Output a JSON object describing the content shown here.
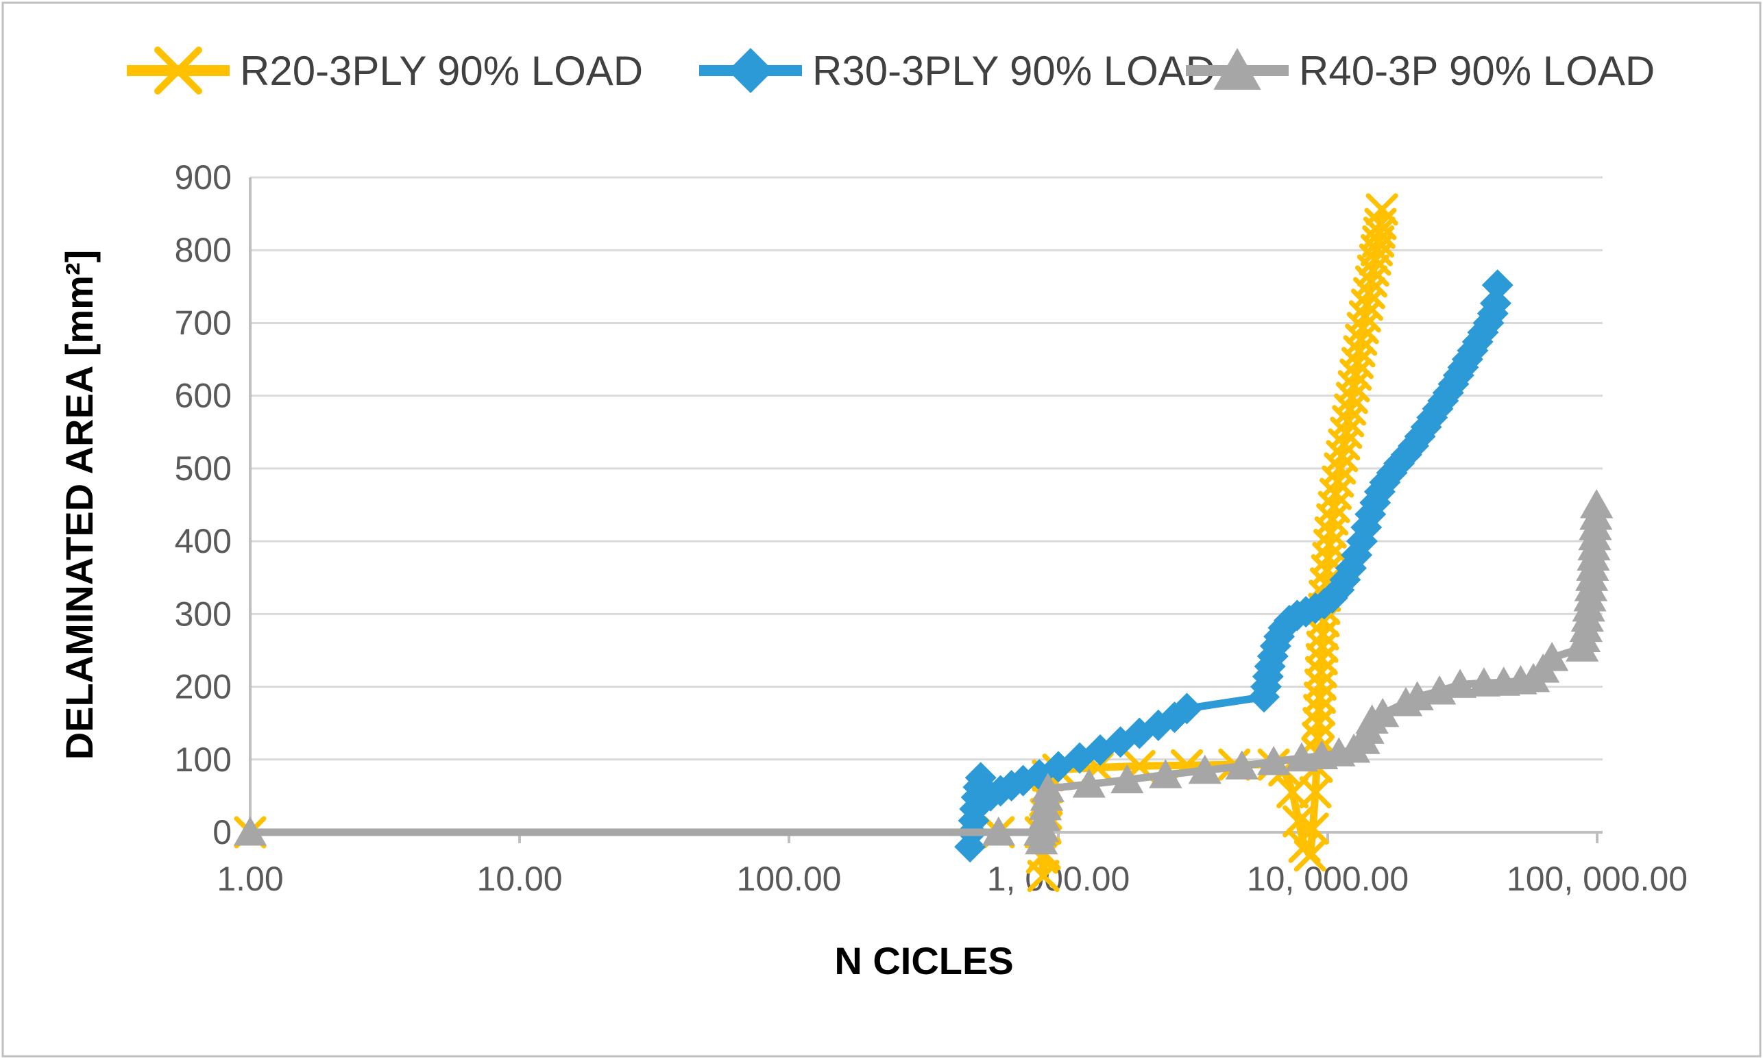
{
  "figure": {
    "background": "#FFFFFF",
    "border_color": "#BFBFBF"
  },
  "chart_data": {
    "type": "line",
    "title": "",
    "xlabel": "N CICLES",
    "ylabel": "DELAMINATED AREA [mm²]",
    "x_scale": "log10",
    "xlim": [
      1,
      100000
    ],
    "ylim": [
      0,
      900
    ],
    "y_ticks": [
      0,
      100,
      200,
      300,
      400,
      500,
      600,
      700,
      800,
      900
    ],
    "x_ticks": [
      1,
      10,
      100,
      1000,
      10000,
      100000
    ],
    "x_tick_labels": [
      "1.00",
      "10.00",
      "100.00",
      "1, 000.00",
      "10, 000.00",
      "100, 000.00"
    ],
    "grid": "horizontal",
    "legend_position": "top",
    "grid_color": "#D9D9D9",
    "axis_color": "#BFBFBF",
    "tick_label_color": "#595959",
    "axis_title_color": "#000000",
    "legend_text_color": "#404040",
    "series": [
      {
        "name": "R20-3PLY 90% LOAD",
        "color": "#FFC000",
        "marker": "x-cross",
        "points": [
          [
            1,
            0
          ],
          [
            600,
            0
          ],
          [
            860,
            0
          ],
          [
            870,
            -35
          ],
          [
            880,
            -60
          ],
          [
            890,
            -30
          ],
          [
            895,
            5
          ],
          [
            900,
            25
          ],
          [
            905,
            45
          ],
          [
            910,
            62
          ],
          [
            915,
            78
          ],
          [
            1000,
            86
          ],
          [
            1400,
            89
          ],
          [
            2000,
            91
          ],
          [
            3000,
            92
          ],
          [
            4500,
            93
          ],
          [
            6300,
            93
          ],
          [
            6900,
            85
          ],
          [
            7400,
            55
          ],
          [
            7800,
            15
          ],
          [
            8200,
            -20
          ],
          [
            8600,
            -32
          ],
          [
            8800,
            5
          ],
          [
            9000,
            55
          ],
          [
            9100,
            90
          ],
          [
            9150,
            110
          ],
          [
            9200,
            130
          ],
          [
            9250,
            150
          ],
          [
            9300,
            168
          ],
          [
            9350,
            185
          ],
          [
            9400,
            203
          ],
          [
            9450,
            220
          ],
          [
            9500,
            238
          ],
          [
            9550,
            255
          ],
          [
            9600,
            272
          ],
          [
            9650,
            290
          ],
          [
            9700,
            307
          ],
          [
            9750,
            325
          ],
          [
            9850,
            342
          ],
          [
            9950,
            360
          ],
          [
            10050,
            377
          ],
          [
            10150,
            395
          ],
          [
            10250,
            412
          ],
          [
            10400,
            430
          ],
          [
            10550,
            447
          ],
          [
            10700,
            465
          ],
          [
            10900,
            482
          ],
          [
            11100,
            500
          ],
          [
            11300,
            517
          ],
          [
            11500,
            533
          ],
          [
            11700,
            549
          ],
          [
            11900,
            565
          ],
          [
            12100,
            581
          ],
          [
            12300,
            597
          ],
          [
            12500,
            613
          ],
          [
            12700,
            629
          ],
          [
            12900,
            645
          ],
          [
            13100,
            661
          ],
          [
            13300,
            677
          ],
          [
            13500,
            693
          ],
          [
            13750,
            709
          ],
          [
            14000,
            725
          ],
          [
            14250,
            741
          ],
          [
            14500,
            757
          ],
          [
            14750,
            772
          ],
          [
            15000,
            787
          ],
          [
            15200,
            800
          ],
          [
            15400,
            812
          ],
          [
            15550,
            824
          ],
          [
            15700,
            836
          ],
          [
            15900,
            856
          ]
        ]
      },
      {
        "name": "R30-3PLY 90% LOAD",
        "color": "#2B9AD6",
        "marker": "diamond",
        "points": [
          [
            470,
            -20
          ],
          [
            478,
            0
          ],
          [
            485,
            16
          ],
          [
            490,
            32
          ],
          [
            497,
            48
          ],
          [
            505,
            62
          ],
          [
            515,
            75
          ],
          [
            560,
            50
          ],
          [
            610,
            57
          ],
          [
            670,
            64
          ],
          [
            740,
            71
          ],
          [
            850,
            79
          ],
          [
            1000,
            90
          ],
          [
            1200,
            102
          ],
          [
            1430,
            113
          ],
          [
            1700,
            124
          ],
          [
            2000,
            136
          ],
          [
            2350,
            147
          ],
          [
            2700,
            158
          ],
          [
            3000,
            170
          ],
          [
            5800,
            186
          ],
          [
            5900,
            200
          ],
          [
            6000,
            214
          ],
          [
            6100,
            228
          ],
          [
            6250,
            242
          ],
          [
            6400,
            256
          ],
          [
            6600,
            269
          ],
          [
            6850,
            281
          ],
          [
            7200,
            291
          ],
          [
            7700,
            298
          ],
          [
            8300,
            303
          ],
          [
            9000,
            308
          ],
          [
            9700,
            314
          ],
          [
            10400,
            322
          ],
          [
            11000,
            333
          ],
          [
            11600,
            347
          ],
          [
            12200,
            363
          ],
          [
            12800,
            381
          ],
          [
            13400,
            400
          ],
          [
            13900,
            419
          ],
          [
            14400,
            437
          ],
          [
            15000,
            453
          ],
          [
            15600,
            468
          ],
          [
            16300,
            481
          ],
          [
            17300,
            494
          ],
          [
            18400,
            507
          ],
          [
            19600,
            519
          ],
          [
            20800,
            531
          ],
          [
            22000,
            544
          ],
          [
            23200,
            557
          ],
          [
            24400,
            570
          ],
          [
            25600,
            582
          ],
          [
            26800,
            593
          ],
          [
            28000,
            604
          ],
          [
            29300,
            616
          ],
          [
            30600,
            628
          ],
          [
            31800,
            639
          ],
          [
            33000,
            650
          ],
          [
            34500,
            662
          ],
          [
            36000,
            674
          ],
          [
            37700,
            687
          ],
          [
            39500,
            700
          ],
          [
            41000,
            713
          ],
          [
            42000,
            727
          ],
          [
            42700,
            752
          ]
        ]
      },
      {
        "name": "R40-3P 90% LOAD",
        "color": "#A6A6A6",
        "marker": "triangle-up",
        "points": [
          [
            1,
            0
          ],
          [
            600,
            0
          ],
          [
            855,
            0
          ],
          [
            865,
            -12
          ],
          [
            875,
            5
          ],
          [
            885,
            20
          ],
          [
            895,
            35
          ],
          [
            905,
            48
          ],
          [
            915,
            60
          ],
          [
            1300,
            66
          ],
          [
            1800,
            72
          ],
          [
            2500,
            79
          ],
          [
            3500,
            85
          ],
          [
            4800,
            91
          ],
          [
            6300,
            97
          ],
          [
            8000,
            102
          ],
          [
            9500,
            105
          ],
          [
            11000,
            109
          ],
          [
            12500,
            114
          ],
          [
            13600,
            126
          ],
          [
            14100,
            140
          ],
          [
            14600,
            154
          ],
          [
            16000,
            163
          ],
          [
            19500,
            178
          ],
          [
            21500,
            186
          ],
          [
            26000,
            194
          ],
          [
            31000,
            203
          ],
          [
            38000,
            205
          ],
          [
            45000,
            206
          ],
          [
            52000,
            208
          ],
          [
            58000,
            211
          ],
          [
            63000,
            224
          ],
          [
            68000,
            240
          ],
          [
            88000,
            253
          ],
          [
            89500,
            266
          ],
          [
            91000,
            280
          ],
          [
            92000,
            294
          ],
          [
            93000,
            308
          ],
          [
            94000,
            322
          ],
          [
            94800,
            336
          ],
          [
            95500,
            350
          ],
          [
            96200,
            364
          ],
          [
            96800,
            378
          ],
          [
            97400,
            392
          ],
          [
            98000,
            406
          ],
          [
            98500,
            420
          ],
          [
            99000,
            434
          ],
          [
            99500,
            450
          ]
        ]
      }
    ]
  }
}
